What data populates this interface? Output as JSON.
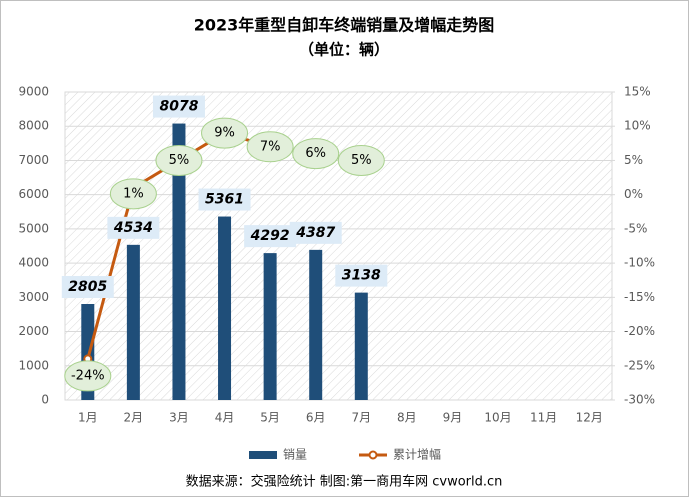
{
  "chart_data": {
    "type": "bar",
    "title": "2023年重型自卸车终端销量及增幅走势图",
    "subtitle": "（单位：辆）",
    "categories": [
      "1月",
      "2月",
      "3月",
      "4月",
      "5月",
      "6月",
      "7月",
      "8月",
      "9月",
      "10月",
      "11月",
      "12月"
    ],
    "series": [
      {
        "name": "销量",
        "color": "#1f4e79",
        "values": [
          2805,
          4534,
          8078,
          5361,
          4292,
          4387,
          3138,
          null,
          null,
          null,
          null,
          null
        ]
      },
      {
        "name": "累计增幅",
        "color": "#c55a11",
        "axis": "y2",
        "type": "line",
        "values": [
          -24,
          1,
          5,
          9,
          7,
          6,
          5,
          null,
          null,
          null,
          null,
          null
        ],
        "value_labels": [
          "-24%",
          "1%",
          "5%",
          "9%",
          "7%",
          "6%",
          "5%",
          null,
          null,
          null,
          null,
          null
        ]
      }
    ],
    "ylim": [
      0,
      9000
    ],
    "yticks": [
      0,
      1000,
      2000,
      3000,
      4000,
      5000,
      6000,
      7000,
      8000,
      9000
    ],
    "y2lim": [
      -30,
      15
    ],
    "y2ticks": [
      {
        "value": -30,
        "label": "-30%"
      },
      {
        "value": -25,
        "label": "-25%"
      },
      {
        "value": -20,
        "label": "-20%"
      },
      {
        "value": -15,
        "label": "-15%"
      },
      {
        "value": -10,
        "label": "-10%"
      },
      {
        "value": -5,
        "label": "-5%"
      },
      {
        "value": 0,
        "label": "0%"
      },
      {
        "value": 5,
        "label": "5%"
      },
      {
        "value": 10,
        "label": "10%"
      },
      {
        "value": 15,
        "label": "15%"
      }
    ],
    "legend": "bottom",
    "source": "数据来源：交强险统计  制图:第一商用车网 cvworld.cn"
  }
}
